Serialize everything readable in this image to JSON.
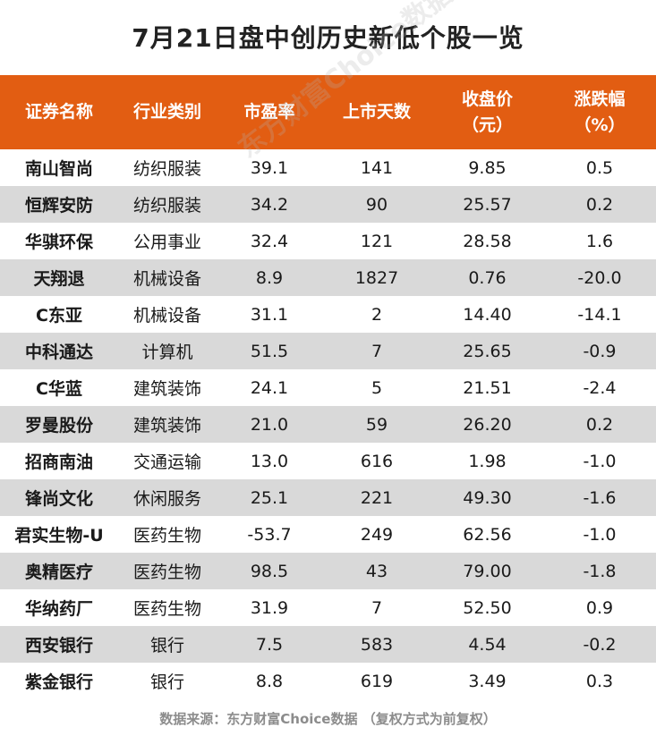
{
  "title": "7月21日盘中创历史新低个股一览",
  "headers": {
    "name": "证券名称",
    "industry": "行业类别",
    "pe": "市盈率",
    "days": "上市天数",
    "close_line1": "收盘价",
    "close_line2": "（元）",
    "change_line1": "涨跌幅",
    "change_line2": "（%）"
  },
  "rows": [
    {
      "name": "南山智尚",
      "industry": "纺织服装",
      "pe": "39.1",
      "days": "141",
      "close": "9.85",
      "change": "0.5"
    },
    {
      "name": "恒辉安防",
      "industry": "纺织服装",
      "pe": "34.2",
      "days": "90",
      "close": "25.57",
      "change": "0.2"
    },
    {
      "name": "华骐环保",
      "industry": "公用事业",
      "pe": "32.4",
      "days": "121",
      "close": "28.58",
      "change": "1.6"
    },
    {
      "name": "天翔退",
      "industry": "机械设备",
      "pe": "8.9",
      "days": "1827",
      "close": "0.76",
      "change": "-20.0"
    },
    {
      "name": "C东亚",
      "industry": "机械设备",
      "pe": "31.1",
      "days": "2",
      "close": "14.40",
      "change": "-14.1"
    },
    {
      "name": "中科通达",
      "industry": "计算机",
      "pe": "51.5",
      "days": "7",
      "close": "25.65",
      "change": "-0.9"
    },
    {
      "name": "C华蓝",
      "industry": "建筑装饰",
      "pe": "24.1",
      "days": "5",
      "close": "21.51",
      "change": "-2.4"
    },
    {
      "name": "罗曼股份",
      "industry": "建筑装饰",
      "pe": "21.0",
      "days": "59",
      "close": "26.20",
      "change": "0.2"
    },
    {
      "name": "招商南油",
      "industry": "交通运输",
      "pe": "13.0",
      "days": "616",
      "close": "1.98",
      "change": "-1.0"
    },
    {
      "name": "锋尚文化",
      "industry": "休闲服务",
      "pe": "25.1",
      "days": "221",
      "close": "49.30",
      "change": "-1.6"
    },
    {
      "name": "君实生物-U",
      "industry": "医药生物",
      "pe": "-53.7",
      "days": "249",
      "close": "62.56",
      "change": "-1.0"
    },
    {
      "name": "奥精医疗",
      "industry": "医药生物",
      "pe": "98.5",
      "days": "43",
      "close": "79.00",
      "change": "-1.8"
    },
    {
      "name": "华纳药厂",
      "industry": "医药生物",
      "pe": "31.9",
      "days": "7",
      "close": "52.50",
      "change": "0.9"
    },
    {
      "name": "西安银行",
      "industry": "银行",
      "pe": "7.5",
      "days": "583",
      "close": "4.54",
      "change": "-0.2"
    },
    {
      "name": "紫金银行",
      "industry": "银行",
      "pe": "8.8",
      "days": "619",
      "close": "3.49",
      "change": "0.3"
    }
  ],
  "watermark": "东方财富Choice数据",
  "footer": "数据来源：东方财富Choice数据 （复权方式为前复权）",
  "colors": {
    "header_bg": "#e25d12",
    "stripe_bg": "#d9d9d9",
    "footer_text": "#8c8c8c"
  }
}
